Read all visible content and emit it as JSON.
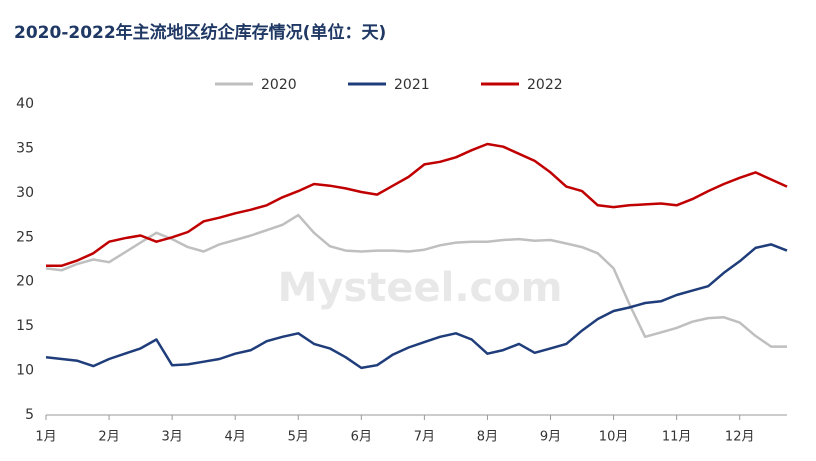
{
  "chart_data": {
    "type": "line",
    "title": "2020-2022年主流地区纺企库存情况(单位：天)",
    "watermark": "Mysteel.com",
    "categories": [
      "1月",
      null,
      null,
      null,
      "2月",
      null,
      null,
      null,
      "3月",
      null,
      null,
      null,
      "4月",
      null,
      null,
      null,
      "5月",
      null,
      null,
      null,
      "6月",
      null,
      null,
      null,
      "7月",
      null,
      null,
      null,
      "8月",
      null,
      null,
      null,
      "9月",
      null,
      null,
      null,
      "10月",
      null,
      null,
      null,
      "11月",
      null,
      null,
      null,
      "12月",
      null,
      null,
      null
    ],
    "series": [
      {
        "name": "2020",
        "color": "#bfbfbf",
        "values": [
          21.5,
          21.3,
          22,
          22.5,
          22.2,
          23.3,
          24.4,
          25.5,
          24.8,
          23.9,
          23.4,
          24.2,
          24.7,
          25.2,
          25.8,
          26.4,
          27.5,
          25.5,
          24.0,
          23.5,
          23.4,
          23.5,
          23.5,
          23.4,
          23.6,
          24.1,
          24.4,
          24.5,
          24.5,
          24.7,
          24.8,
          24.6,
          24.7,
          24.3,
          23.9,
          23.2,
          21.5,
          17.5,
          13.8,
          14.3,
          14.8,
          15.5,
          15.9,
          16.0,
          15.4,
          13.9,
          12.7,
          12.7
        ]
      },
      {
        "name": "2021",
        "color": "#1f3d7a",
        "values": [
          11.5,
          11.3,
          11.1,
          10.5,
          11.3,
          11.9,
          12.5,
          13.5,
          10.6,
          10.7,
          11.0,
          11.3,
          11.9,
          12.3,
          13.3,
          13.8,
          14.2,
          13.0,
          12.5,
          11.5,
          10.3,
          10.6,
          11.8,
          12.6,
          13.2,
          13.8,
          14.2,
          13.5,
          11.9,
          12.3,
          13.0,
          12.0,
          12.5,
          13.0,
          14.5,
          15.8,
          16.7,
          17.1,
          17.6,
          17.8,
          18.5,
          19.0,
          19.5,
          21.0,
          22.3,
          23.8,
          24.2,
          23.5
        ]
      },
      {
        "name": "2022",
        "color": "#c00000",
        "values": [
          21.8,
          21.8,
          22.4,
          23.2,
          24.5,
          24.9,
          25.2,
          24.5,
          25.0,
          25.6,
          26.8,
          27.2,
          27.7,
          28.1,
          28.6,
          29.5,
          30.2,
          31.0,
          30.8,
          30.5,
          30.1,
          29.8,
          30.8,
          31.8,
          33.2,
          33.5,
          34.0,
          34.8,
          35.5,
          35.2,
          34.4,
          33.6,
          32.3,
          30.7,
          30.2,
          28.6,
          28.4,
          28.6,
          28.7,
          28.8,
          28.6,
          29.3,
          30.2,
          31.0,
          31.7,
          32.3,
          31.5,
          30.7
        ]
      }
    ],
    "ylim": [
      5,
      40
    ],
    "yticks": [
      5,
      10,
      15,
      20,
      25,
      30,
      35,
      40
    ],
    "grid": false,
    "legend": "top"
  }
}
